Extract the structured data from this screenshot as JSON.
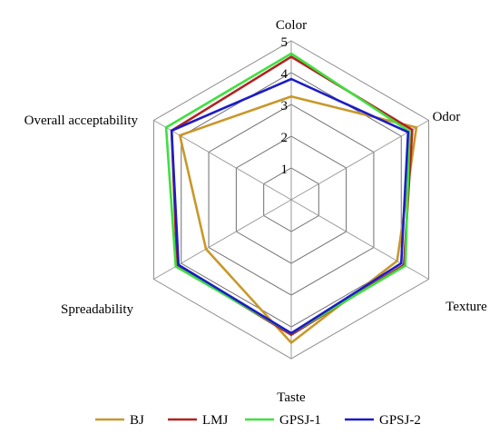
{
  "chart_data": {
    "type": "radar",
    "title": "",
    "axes": [
      "Color",
      "Odor",
      "Texture",
      "Taste",
      "Spreadability",
      "Overall acceptability"
    ],
    "range": [
      0,
      5
    ],
    "ticks": [
      1,
      2,
      3,
      4,
      5
    ],
    "grid": true,
    "legend_position": "bottom",
    "series": [
      {
        "name": "BJ",
        "color": "#c8982a",
        "values": [
          3.25,
          4.55,
          3.85,
          4.5,
          3.1,
          4.05
        ]
      },
      {
        "name": "LMJ",
        "color": "#b22222",
        "values": [
          4.5,
          4.4,
          4.1,
          4.25,
          4.15,
          4.35
        ]
      },
      {
        "name": "GPSJ-1",
        "color": "#3fe03f",
        "values": [
          4.6,
          4.3,
          4.15,
          4.2,
          4.2,
          4.55
        ]
      },
      {
        "name": "GPSJ-2",
        "color": "#1c1cc8",
        "values": [
          3.8,
          4.25,
          4.0,
          4.2,
          4.1,
          4.35
        ]
      }
    ]
  }
}
